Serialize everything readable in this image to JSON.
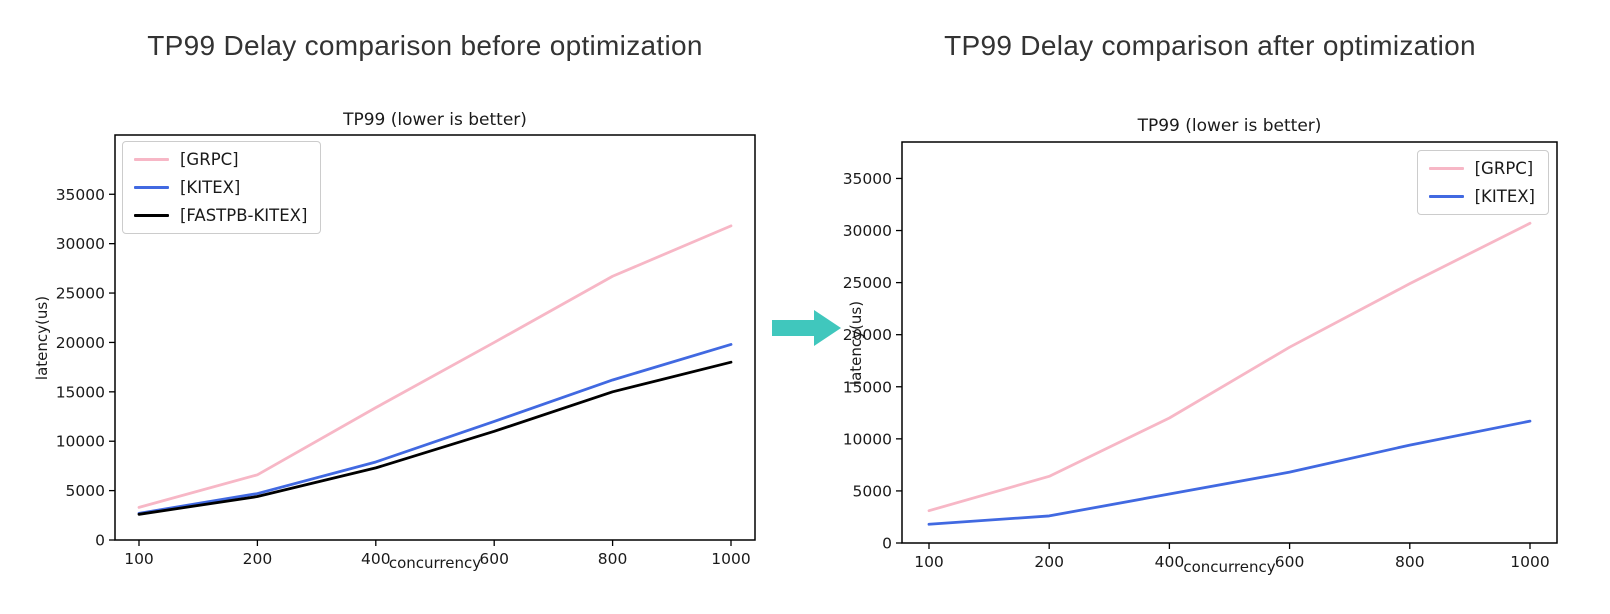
{
  "headings": {
    "before": "TP99 Delay comparison before optimization",
    "after": "TP99 Delay comparison after optimization"
  },
  "arrow": {
    "icon": "right-arrow",
    "color": "#40C7BD"
  },
  "chart_data": [
    {
      "type": "line",
      "title": "TP99 (lower is better)",
      "xlabel": "concurrency",
      "ylabel": "latency(us)",
      "categories": [
        100,
        200,
        400,
        600,
        800,
        1000
      ],
      "series": [
        {
          "name": "[GRPC]",
          "color": "#F7B7C6",
          "values": [
            3300,
            6600,
            13400,
            20000,
            26700,
            31800
          ]
        },
        {
          "name": "[KITEX]",
          "color": "#4169E1",
          "values": [
            2700,
            4700,
            7900,
            12000,
            16200,
            19800
          ]
        },
        {
          "name": "[FASTPB-KITEX]",
          "color": "#000000",
          "values": [
            2600,
            4400,
            7300,
            11000,
            15000,
            18000
          ]
        }
      ],
      "ylim": [
        0,
        41000
      ],
      "yticks": [
        0,
        5000,
        10000,
        15000,
        20000,
        25000,
        30000,
        35000
      ],
      "legend_position": "upper-left",
      "grid": false
    },
    {
      "type": "line",
      "title": "TP99 (lower is better)",
      "xlabel": "concurrency",
      "ylabel": "latency(us)",
      "categories": [
        100,
        200,
        400,
        600,
        800,
        1000
      ],
      "series": [
        {
          "name": "[GRPC]",
          "color": "#F7B7C6",
          "values": [
            3100,
            6400,
            12000,
            18800,
            24900,
            30700
          ]
        },
        {
          "name": "[KITEX]",
          "color": "#4169E1",
          "values": [
            1800,
            2600,
            4700,
            6800,
            9400,
            11700
          ]
        }
      ],
      "ylim": [
        0,
        38500
      ],
      "yticks": [
        0,
        5000,
        10000,
        15000,
        20000,
        25000,
        30000,
        35000
      ],
      "legend_position": "upper-right",
      "grid": false
    }
  ]
}
